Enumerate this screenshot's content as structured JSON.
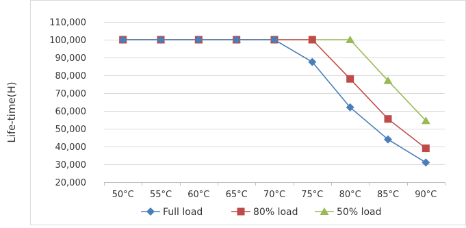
{
  "chart_data": {
    "type": "line",
    "title": "",
    "xlabel": "",
    "ylabel": "Life-time(H)",
    "categories": [
      "50°C",
      "55°C",
      "60°C",
      "65°C",
      "70°C",
      "75°C",
      "80°C",
      "85°C",
      "90°C"
    ],
    "y_ticks": [
      "20,000",
      "30,000",
      "40,000",
      "50,000",
      "60,000",
      "70,000",
      "80,000",
      "90,000",
      "100,000",
      "110,000"
    ],
    "ylim": [
      20000,
      110000
    ],
    "grid": true,
    "legend_position": "bottom",
    "series": [
      {
        "name": "Full load",
        "color": "#4a7ebb",
        "marker": "diamond",
        "values": [
          100000,
          100000,
          100000,
          100000,
          100000,
          87500,
          62000,
          44000,
          31000
        ]
      },
      {
        "name": "80% load",
        "color": "#be4b48",
        "marker": "square",
        "values": [
          100000,
          100000,
          100000,
          100000,
          100000,
          100000,
          78000,
          55500,
          39000
        ]
      },
      {
        "name": "50% load",
        "color": "#98b954",
        "marker": "triangle",
        "values": [
          100000,
          100000,
          100000,
          100000,
          100000,
          100000,
          100000,
          77000,
          54500
        ]
      }
    ]
  }
}
